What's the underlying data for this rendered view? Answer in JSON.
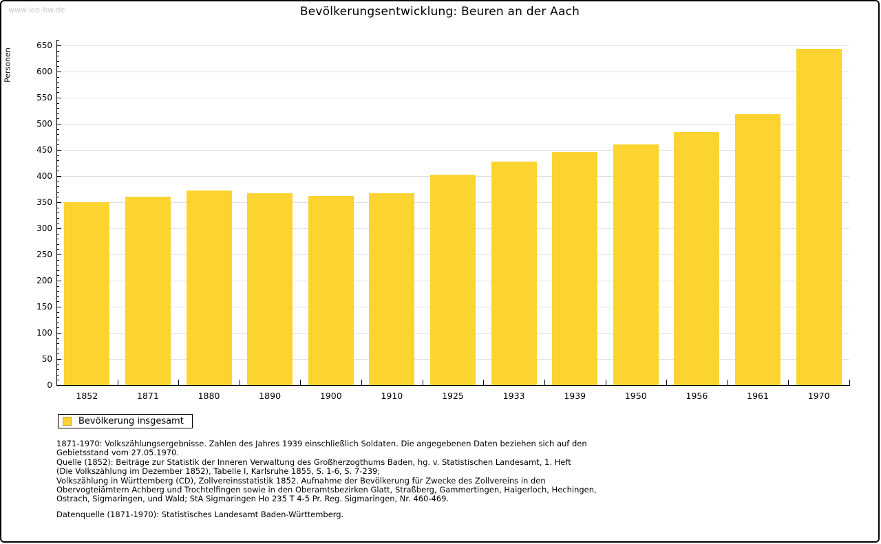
{
  "watermark": "www.leo-bw.de",
  "title": "Bevölkerungsentwicklung: Beuren an der Aach",
  "chart_data": {
    "type": "bar",
    "title": "Bevölkerungsentwicklung: Beuren an der Aach",
    "xlabel": "",
    "ylabel": "Personen",
    "categories": [
      "1852",
      "1871",
      "1880",
      "1890",
      "1900",
      "1910",
      "1925",
      "1933",
      "1939",
      "1950",
      "1956",
      "1961",
      "1970"
    ],
    "values": [
      350,
      361,
      373,
      367,
      362,
      367,
      402,
      428,
      446,
      460,
      484,
      519,
      644
    ],
    "ylim": [
      0,
      650
    ],
    "ytick_step": 50,
    "grid": true,
    "legend_position": "bottom-left",
    "bar_color": "#fcd42f",
    "gridline_color": "#e0e0e0"
  },
  "legend": {
    "label": "Bevölkerung insgesamt"
  },
  "notes": {
    "lines": [
      "1871-1970: Volkszählungsergebnisse. Zahlen des Jahres 1939 einschließlich Soldaten. Die angegebenen Daten beziehen sich auf den",
      "Gebietsstand vom 27.05.1970.",
      "Quelle (1852): Beiträge zur Statistik der Inneren Verwaltung des Großherzogthums Baden, hg. v. Statistischen Landesamt, 1. Heft",
      "(Die Volkszählung im Dezember 1852), Tabelle I, Karlsruhe 1855, S. 1-6, S. 7-239;",
      "Volkszählung in Württemberg (CD), Zollvereinsstatistik 1852. Aufnahme der Bevölkerung für Zwecke des Zollvereins in den",
      "Obervogteiämtern Achberg und Trochtelfingen sowie in den Oberamtsbezirken Glatt, Straßberg, Gammertingen, Haigerloch, Hechingen,",
      "Ostrach, Sigmaringen, und Wald; StA Sigmaringen Ho 235 T 4-5 Pr. Reg. Sigmaringen, Nr. 460-469."
    ],
    "datasource": "Datenquelle (1871-1970): Statistisches Landesamt Baden-Württemberg."
  }
}
